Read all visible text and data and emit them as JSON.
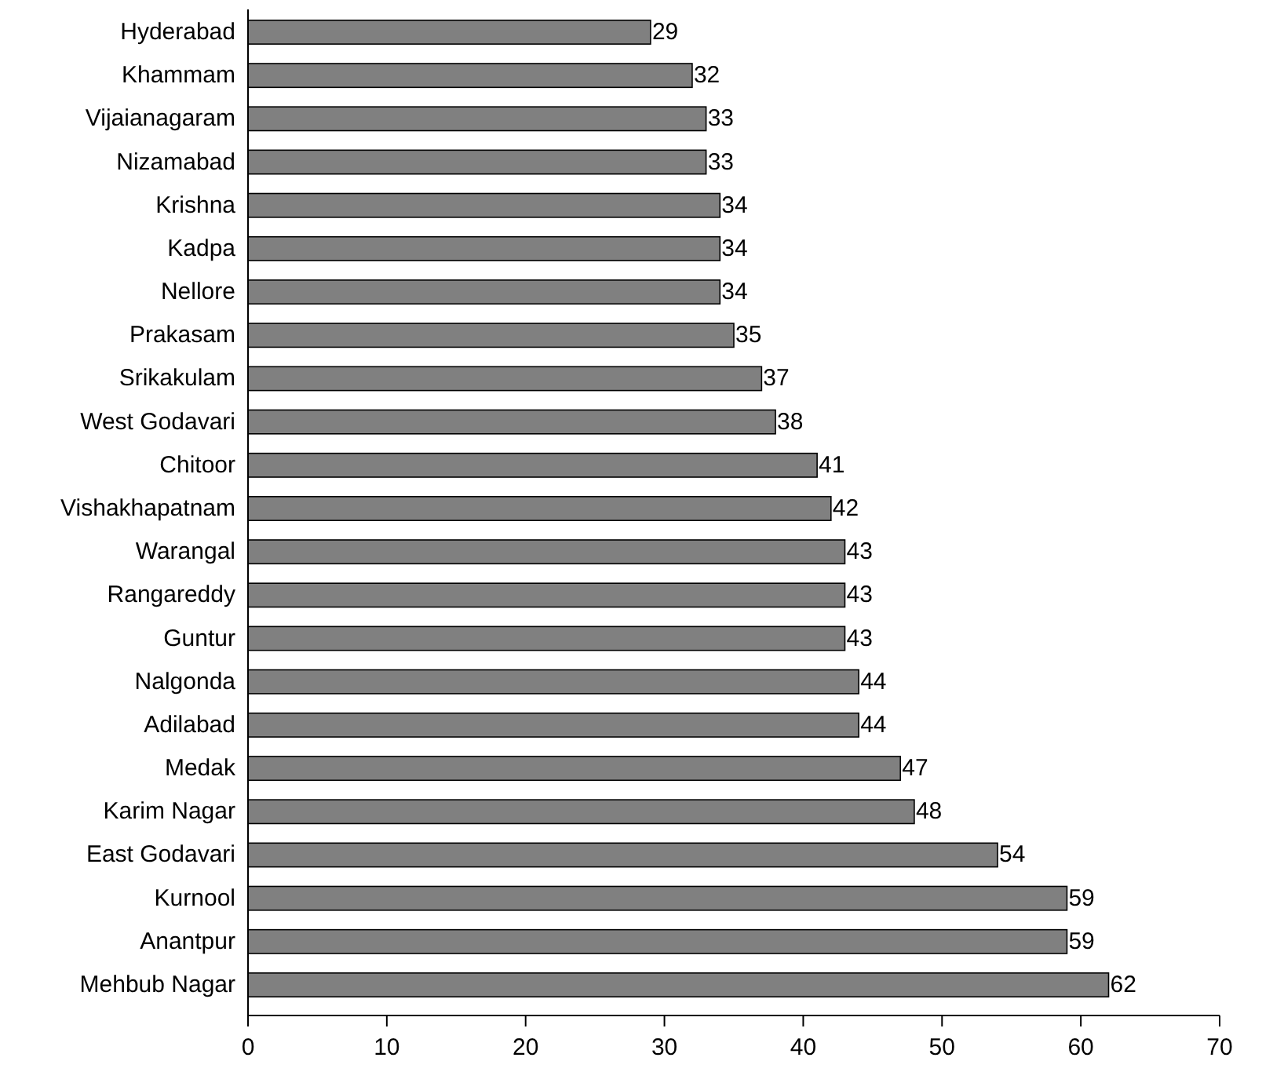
{
  "chart_data": {
    "type": "bar",
    "orientation": "horizontal",
    "categories": [
      "Hyderabad",
      "Khammam",
      "Vijaianagaram",
      "Nizamabad",
      "Krishna",
      "Kadpa",
      "Nellore",
      "Prakasam",
      "Srikakulam",
      "West Godavari",
      "Chitoor",
      "Vishakhapatnam",
      "Warangal",
      "Rangareddy",
      "Guntur",
      "Nalgonda",
      "Adilabad",
      "Medak",
      "Karim Nagar",
      "East Godavari",
      "Kurnool",
      "Anantpur",
      "Mehbub Nagar"
    ],
    "values": [
      29,
      32,
      33,
      33,
      34,
      34,
      34,
      35,
      37,
      38,
      41,
      42,
      43,
      43,
      43,
      44,
      44,
      47,
      48,
      54,
      59,
      59,
      62
    ],
    "color": "#808080",
    "xlim": [
      0,
      70
    ],
    "xticks": [
      0,
      10,
      20,
      30,
      40,
      50,
      60,
      70
    ],
    "data_labels": true,
    "grid": false
  }
}
